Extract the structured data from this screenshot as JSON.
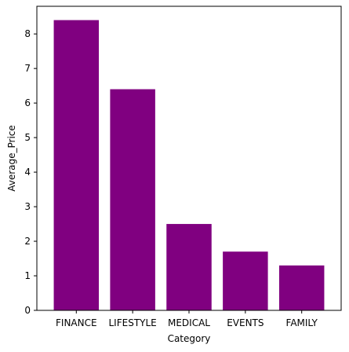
{
  "chart_data": {
    "type": "bar",
    "categories": [
      "FINANCE",
      "LIFESTYLE",
      "MEDICAL",
      "EVENTS",
      "FAMILY"
    ],
    "values": [
      8.4,
      6.4,
      2.5,
      1.7,
      1.3
    ],
    "xlabel": "Category",
    "ylabel": "Average_Price",
    "ylim": [
      0,
      8.8
    ],
    "yticks": [
      0,
      1,
      2,
      3,
      4,
      5,
      6,
      7,
      8
    ],
    "bar_color": "#800080",
    "grid": false,
    "legend": "none"
  }
}
